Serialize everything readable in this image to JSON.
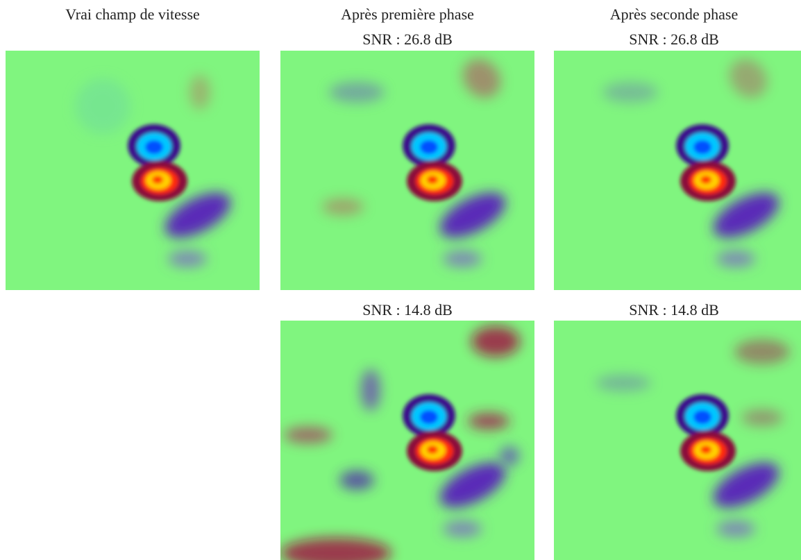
{
  "panels": [
    {
      "title": "Vrai champ de vitesse"
    },
    {
      "title": "Après première phase",
      "subtitle": "SNR : 26.8 dB"
    },
    {
      "title": "Après seconde phase",
      "subtitle": "SNR : 26.8 dB"
    },
    {
      "subtitle": "SNR : 14.8 dB"
    },
    {
      "subtitle": "SNR : 14.8 dB"
    }
  ]
}
